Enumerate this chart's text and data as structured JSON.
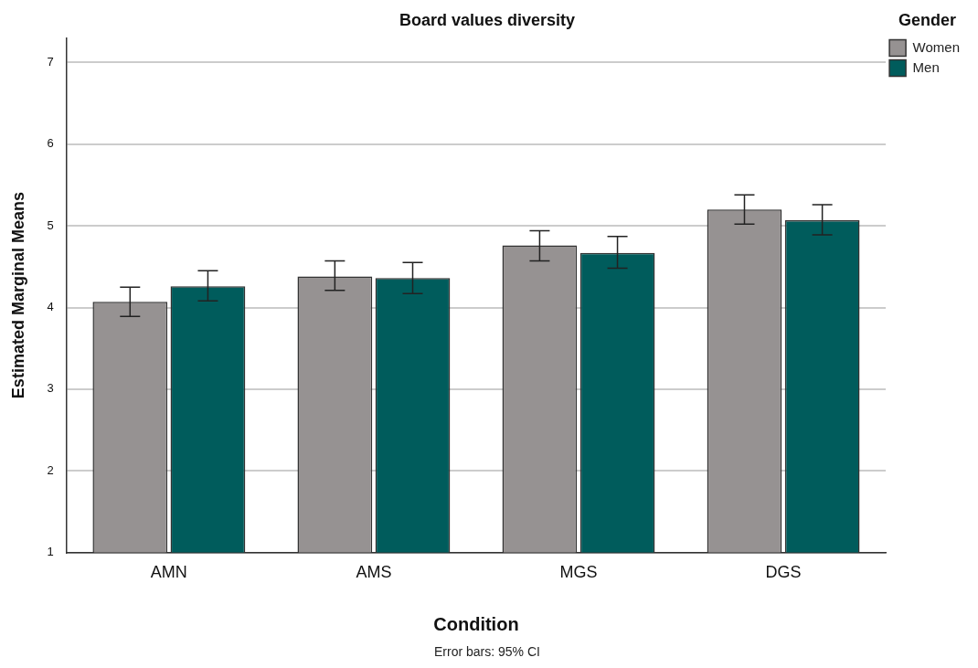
{
  "chart_data": {
    "type": "bar",
    "title": "Board values diversity",
    "xlabel": "Condition",
    "ylabel": "Estimated Marginal Means",
    "legend_title": "Gender",
    "annotations": [
      "Error bars: 95% CI"
    ],
    "categories": [
      "AMN",
      "AMS",
      "MGS",
      "DGS"
    ],
    "series": [
      {
        "name": "Women",
        "color": "#969292",
        "values": [
          4.07,
          4.38,
          4.76,
          5.2
        ],
        "errors": [
          [
            3.89,
            4.25
          ],
          [
            4.21,
            4.57
          ],
          [
            4.57,
            4.94
          ],
          [
            5.02,
            5.38
          ]
        ]
      },
      {
        "name": "Men",
        "color": "#005c5c",
        "values": [
          4.26,
          4.36,
          4.67,
          5.07
        ],
        "errors": [
          [
            4.08,
            4.45
          ],
          [
            4.17,
            4.55
          ],
          [
            4.48,
            4.87
          ],
          [
            4.89,
            5.26
          ]
        ]
      }
    ],
    "ylim": [
      1,
      7.3
    ],
    "yticks": [
      1,
      2,
      3,
      4,
      5,
      6,
      7
    ],
    "grid": "y",
    "legend": "top right"
  }
}
